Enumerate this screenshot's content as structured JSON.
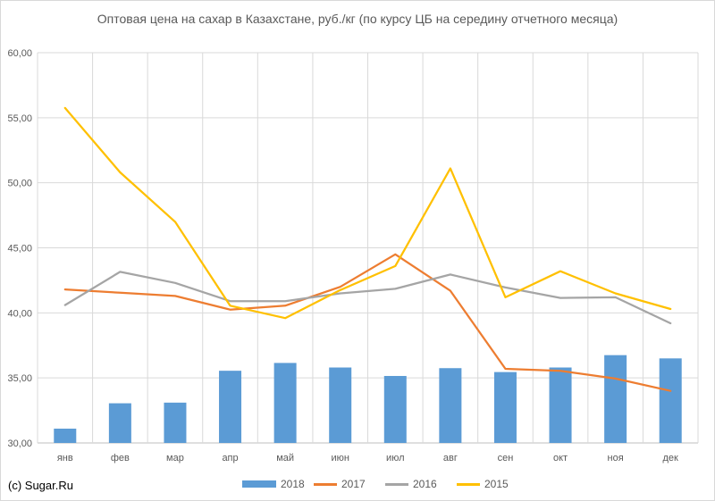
{
  "chart_data": {
    "type": "bar",
    "title": "Оптовая цена на сахар в Казахстане, руб./кг (по курсу ЦБ на середину отчетного месяца)",
    "categories": [
      "янв",
      "фев",
      "мар",
      "апр",
      "май",
      "июн",
      "июл",
      "авг",
      "сен",
      "окт",
      "ноя",
      "дек"
    ],
    "ylim": [
      30,
      60
    ],
    "yticks": [
      "30,00",
      "35,00",
      "40,00",
      "45,00",
      "50,00",
      "55,00",
      "60,00"
    ],
    "ytick_values": [
      30,
      35,
      40,
      45,
      50,
      55,
      60
    ],
    "grid": true,
    "legend_position": "bottom",
    "series": [
      {
        "name": "2018",
        "type": "bar",
        "color": "#5b9bd5",
        "values": [
          31.1,
          33.05,
          33.1,
          35.55,
          36.15,
          35.8,
          35.15,
          35.75,
          35.45,
          35.8,
          36.75,
          36.5
        ]
      },
      {
        "name": "2017",
        "type": "line",
        "color": "#ed7d31",
        "values": [
          41.8,
          41.55,
          41.3,
          40.25,
          40.55,
          42.0,
          44.5,
          41.7,
          35.7,
          35.55,
          34.95,
          34.0
        ]
      },
      {
        "name": "2016",
        "type": "line",
        "color": "#a5a5a5",
        "values": [
          40.6,
          43.15,
          42.3,
          40.9,
          40.9,
          41.5,
          41.85,
          42.95,
          41.95,
          41.15,
          41.2,
          39.2
        ]
      },
      {
        "name": "2015",
        "type": "line",
        "color": "#ffc000",
        "values": [
          55.75,
          50.8,
          47.0,
          40.55,
          39.6,
          41.75,
          43.6,
          51.1,
          41.2,
          43.2,
          41.5,
          40.3
        ]
      }
    ]
  },
  "footer": {
    "copyright": "(c) Sugar.Ru"
  }
}
